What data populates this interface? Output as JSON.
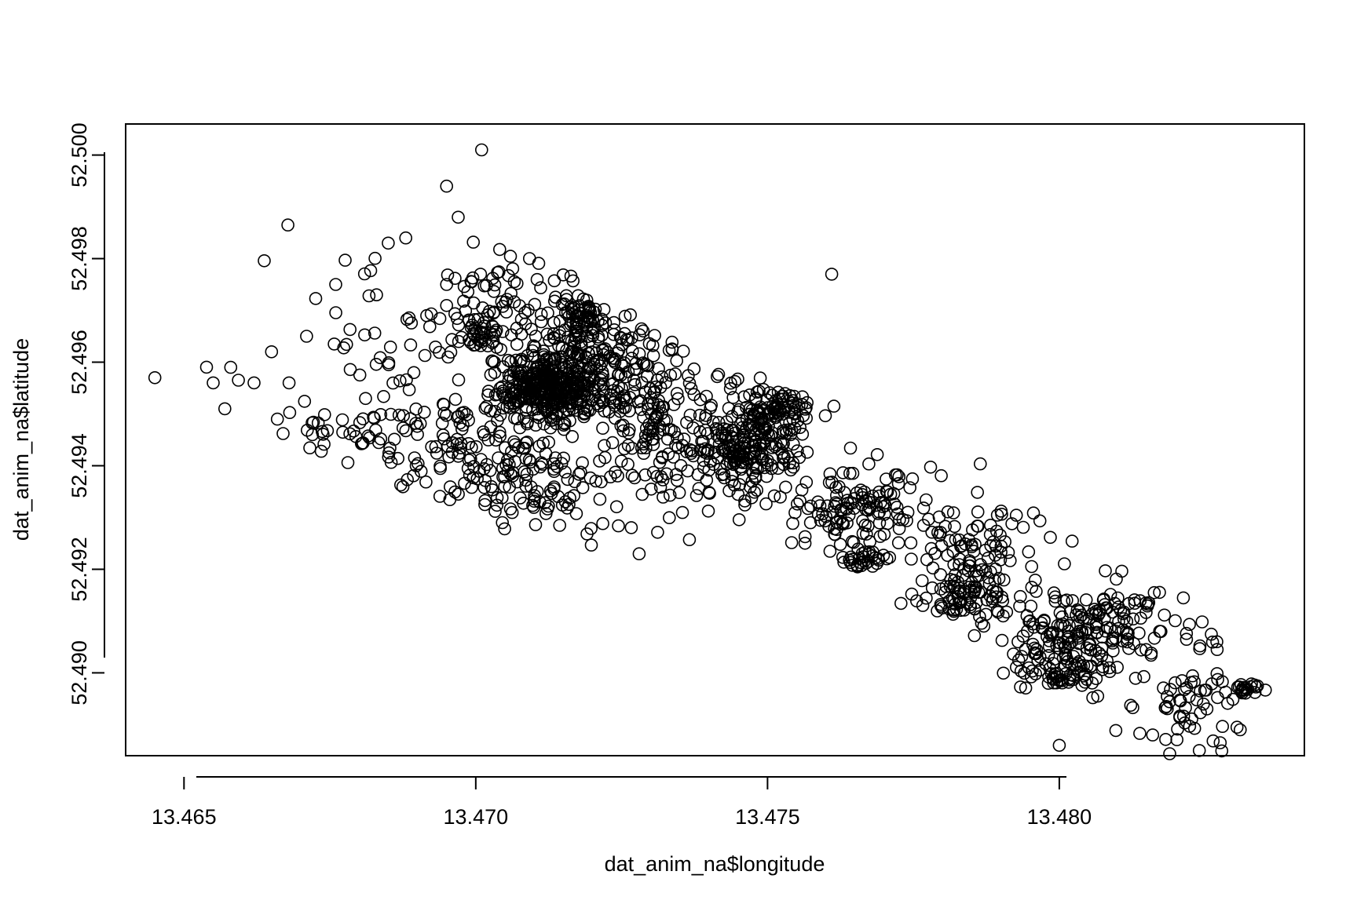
{
  "chart_data": {
    "type": "scatter",
    "title": "",
    "xlabel": "dat_anim_na$longitude",
    "ylabel": "dat_anim_na$latitude",
    "xlim": [
      13.464,
      13.4842
    ],
    "ylim": [
      52.4884,
      52.5006
    ],
    "x_ticks": [
      13.465,
      13.47,
      13.475,
      13.48
    ],
    "x_tick_labels": [
      "13.465",
      "13.470",
      "13.475",
      "13.480"
    ],
    "y_ticks": [
      52.49,
      52.492,
      52.494,
      52.496,
      52.498,
      52.5
    ],
    "y_tick_labels": [
      "52.490",
      "52.492",
      "52.494",
      "52.496",
      "52.498",
      "52.500"
    ],
    "grid": false,
    "marker": "open-circle",
    "seed": 20240517,
    "clusters": [
      {
        "cx": 13.4713,
        "cy": 52.4955,
        "sx": 0.00045,
        "sy": 0.0003,
        "n": 340
      },
      {
        "cx": 13.472,
        "cy": 52.496,
        "sx": 0.0007,
        "sy": 0.0005,
        "n": 150
      },
      {
        "cx": 13.4705,
        "cy": 52.4968,
        "sx": 0.0008,
        "sy": 0.0008,
        "n": 110
      },
      {
        "cx": 13.4718,
        "cy": 52.4969,
        "sx": 0.0002,
        "sy": 0.00015,
        "n": 50
      },
      {
        "cx": 13.4701,
        "cy": 52.4966,
        "sx": 0.00015,
        "sy": 0.00012,
        "n": 30
      },
      {
        "cx": 13.4747,
        "cy": 52.4944,
        "sx": 0.0004,
        "sy": 0.0004,
        "n": 160
      },
      {
        "cx": 13.4752,
        "cy": 52.4951,
        "sx": 0.0003,
        "sy": 0.0002,
        "n": 70
      },
      {
        "cx": 13.4738,
        "cy": 52.4945,
        "sx": 0.0008,
        "sy": 0.0008,
        "n": 160
      },
      {
        "cx": 13.4727,
        "cy": 52.4952,
        "sx": 0.0008,
        "sy": 0.0009,
        "n": 90
      },
      {
        "cx": 13.471,
        "cy": 52.4937,
        "sx": 0.0008,
        "sy": 0.0005,
        "n": 130
      },
      {
        "cx": 13.4695,
        "cy": 52.4945,
        "sx": 0.0007,
        "sy": 0.0005,
        "n": 70
      },
      {
        "cx": 13.4765,
        "cy": 52.4932,
        "sx": 0.0006,
        "sy": 0.00045,
        "n": 120
      },
      {
        "cx": 13.4767,
        "cy": 52.4922,
        "sx": 0.0002,
        "sy": 8e-05,
        "n": 30
      },
      {
        "cx": 13.4785,
        "cy": 52.4924,
        "sx": 0.0006,
        "sy": 0.0006,
        "n": 110
      },
      {
        "cx": 13.4785,
        "cy": 52.4915,
        "sx": 0.0003,
        "sy": 0.0002,
        "n": 60
      },
      {
        "cx": 13.48,
        "cy": 52.4905,
        "sx": 0.0005,
        "sy": 0.0005,
        "n": 100
      },
      {
        "cx": 13.481,
        "cy": 52.491,
        "sx": 0.0006,
        "sy": 0.0004,
        "n": 110
      },
      {
        "cx": 13.4802,
        "cy": 52.49,
        "sx": 0.0003,
        "sy": 0.00015,
        "n": 40
      },
      {
        "cx": 13.4823,
        "cy": 52.4895,
        "sx": 0.0005,
        "sy": 0.0005,
        "n": 60
      },
      {
        "cx": 13.4832,
        "cy": 52.4897,
        "sx": 0.0001,
        "sy": 7e-05,
        "n": 20
      },
      {
        "cx": 13.4683,
        "cy": 52.4956,
        "sx": 0.001,
        "sy": 0.0012,
        "n": 60
      },
      {
        "cx": 13.4676,
        "cy": 52.4947,
        "sx": 0.0005,
        "sy": 0.0002,
        "n": 20
      }
    ],
    "outliers": [
      [
        13.4645,
        52.4957
      ],
      [
        13.4701,
        52.5001
      ],
      [
        13.4761,
        52.4977
      ],
      [
        13.4695,
        52.4994
      ],
      [
        13.4697,
        52.4988
      ],
      [
        13.4728,
        52.4923
      ],
      [
        13.4655,
        52.4956
      ],
      [
        13.4658,
        52.4959
      ],
      [
        13.4657,
        52.4951
      ],
      [
        13.4662,
        52.4956
      ],
      [
        13.4666,
        52.4949
      ],
      [
        13.4672,
        52.4946
      ],
      [
        13.4688,
        52.4984
      ],
      [
        13.4685,
        52.4983
      ],
      [
        13.4676,
        52.4975
      ],
      [
        13.4671,
        52.4965
      ],
      [
        13.4683,
        52.4973
      ],
      [
        13.4665,
        52.4962
      ],
      [
        13.4668,
        52.4956
      ],
      [
        13.48,
        52.4886
      ],
      [
        13.4824,
        52.4885
      ],
      [
        13.4831,
        52.4889
      ],
      [
        13.4827,
        52.4906
      ],
      [
        13.4816,
        52.4888
      ]
    ]
  }
}
